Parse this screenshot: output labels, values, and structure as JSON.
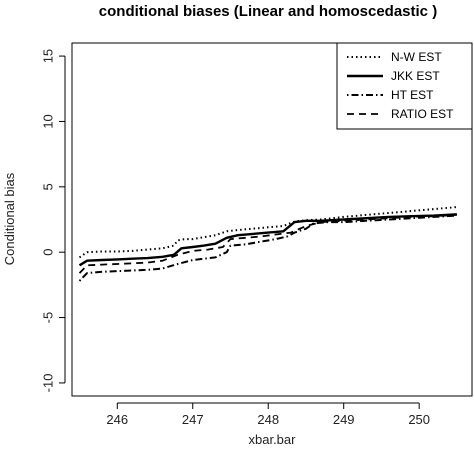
{
  "chart_data": {
    "type": "line",
    "title": "conditional biases (Linear and homoscedastic )",
    "xlabel": "xbar.bar",
    "ylabel": "Conditional bias",
    "xlim": [
      245.4,
      250.7
    ],
    "ylim": [
      -11,
      16
    ],
    "x_ticks": [
      246,
      247,
      248,
      249,
      250
    ],
    "y_ticks": [
      -10,
      -5,
      0,
      5,
      10,
      15
    ],
    "grid": false,
    "legend_position": "top-right",
    "series": [
      {
        "name": "N-W EST",
        "dash": "dotted",
        "points": [
          [
            245.5,
            -0.4
          ],
          [
            245.6,
            0.0
          ],
          [
            245.8,
            0.05
          ],
          [
            246.0,
            0.05
          ],
          [
            246.2,
            0.1
          ],
          [
            246.4,
            0.2
          ],
          [
            246.6,
            0.3
          ],
          [
            246.75,
            0.5
          ],
          [
            246.8,
            0.9
          ],
          [
            246.9,
            1.0
          ],
          [
            247.0,
            1.0
          ],
          [
            247.1,
            1.1
          ],
          [
            247.2,
            1.2
          ],
          [
            247.3,
            1.3
          ],
          [
            247.45,
            1.6
          ],
          [
            247.6,
            1.7
          ],
          [
            247.8,
            1.8
          ],
          [
            248.0,
            1.9
          ],
          [
            248.2,
            2.0
          ],
          [
            248.35,
            2.35
          ],
          [
            248.5,
            2.45
          ],
          [
            248.7,
            2.5
          ],
          [
            249.0,
            2.7
          ],
          [
            249.3,
            2.85
          ],
          [
            249.6,
            3.0
          ],
          [
            249.9,
            3.15
          ],
          [
            250.2,
            3.3
          ],
          [
            250.5,
            3.45
          ]
        ]
      },
      {
        "name": "JKK EST",
        "dash": "solid",
        "points": [
          [
            245.5,
            -1.0
          ],
          [
            245.6,
            -0.65
          ],
          [
            245.8,
            -0.6
          ],
          [
            246.0,
            -0.55
          ],
          [
            246.2,
            -0.5
          ],
          [
            246.4,
            -0.45
          ],
          [
            246.6,
            -0.35
          ],
          [
            246.75,
            -0.2
          ],
          [
            246.85,
            0.3
          ],
          [
            247.0,
            0.4
          ],
          [
            247.15,
            0.5
          ],
          [
            247.3,
            0.65
          ],
          [
            247.45,
            1.1
          ],
          [
            247.6,
            1.3
          ],
          [
            247.8,
            1.4
          ],
          [
            248.0,
            1.5
          ],
          [
            248.2,
            1.6
          ],
          [
            248.35,
            2.3
          ],
          [
            248.5,
            2.4
          ],
          [
            248.7,
            2.4
          ],
          [
            249.0,
            2.5
          ],
          [
            249.3,
            2.6
          ],
          [
            249.6,
            2.7
          ],
          [
            249.9,
            2.75
          ],
          [
            250.2,
            2.8
          ],
          [
            250.5,
            2.9
          ]
        ]
      },
      {
        "name": "HT EST",
        "dash": "dotdash",
        "points": [
          [
            245.5,
            -2.2
          ],
          [
            245.6,
            -1.6
          ],
          [
            245.8,
            -1.5
          ],
          [
            246.0,
            -1.45
          ],
          [
            246.2,
            -1.4
          ],
          [
            246.4,
            -1.35
          ],
          [
            246.6,
            -1.25
          ],
          [
            246.8,
            -0.9
          ],
          [
            247.0,
            -0.6
          ],
          [
            247.15,
            -0.5
          ],
          [
            247.3,
            -0.4
          ],
          [
            247.45,
            0.0
          ],
          [
            247.5,
            0.5
          ],
          [
            247.7,
            0.6
          ],
          [
            247.9,
            0.8
          ],
          [
            248.1,
            1.0
          ],
          [
            248.25,
            1.2
          ],
          [
            248.35,
            1.5
          ],
          [
            248.5,
            1.8
          ],
          [
            248.6,
            2.2
          ],
          [
            248.8,
            2.3
          ],
          [
            249.0,
            2.3
          ],
          [
            249.3,
            2.4
          ],
          [
            249.6,
            2.5
          ],
          [
            249.9,
            2.6
          ],
          [
            250.2,
            2.7
          ],
          [
            250.5,
            2.8
          ]
        ]
      },
      {
        "name": "RATIO EST",
        "dash": "dashed",
        "points": [
          [
            245.5,
            -1.6
          ],
          [
            245.6,
            -1.0
          ],
          [
            245.8,
            -0.95
          ],
          [
            246.0,
            -0.9
          ],
          [
            246.2,
            -0.85
          ],
          [
            246.4,
            -0.8
          ],
          [
            246.6,
            -0.65
          ],
          [
            246.8,
            -0.2
          ],
          [
            247.0,
            0.1
          ],
          [
            247.2,
            0.2
          ],
          [
            247.4,
            0.4
          ],
          [
            247.5,
            1.0
          ],
          [
            247.7,
            1.1
          ],
          [
            247.9,
            1.2
          ],
          [
            248.1,
            1.35
          ],
          [
            248.3,
            1.5
          ],
          [
            248.5,
            2.0
          ],
          [
            248.7,
            2.3
          ],
          [
            249.0,
            2.4
          ],
          [
            249.3,
            2.5
          ],
          [
            249.6,
            2.6
          ],
          [
            249.9,
            2.7
          ],
          [
            250.2,
            2.75
          ],
          [
            250.5,
            2.85
          ]
        ]
      }
    ]
  }
}
